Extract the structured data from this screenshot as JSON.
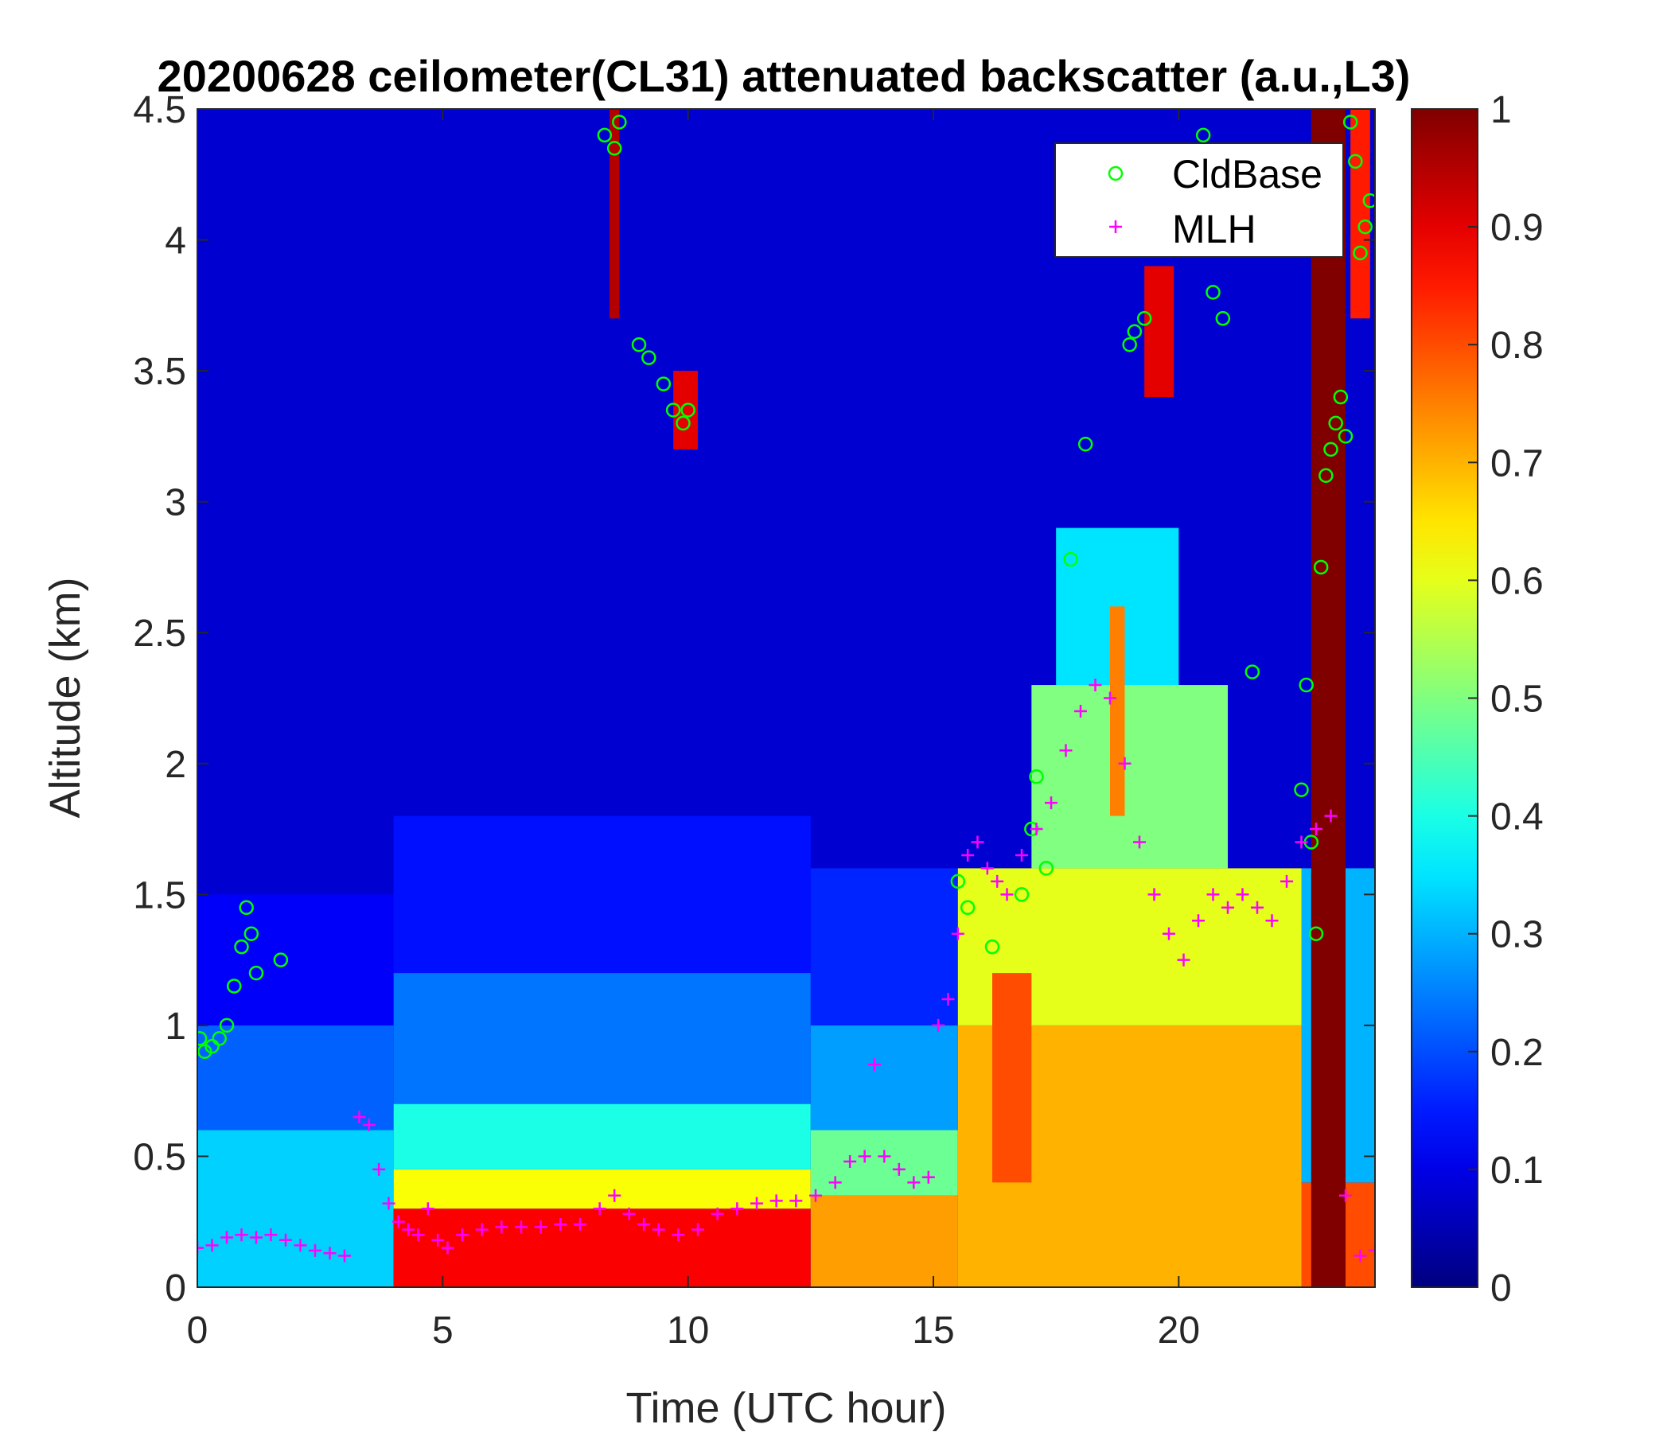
{
  "chart_data": {
    "type": "heatmap",
    "title": "20200628 ceilometer(CL31) attenuated backscatter (a.u.,L3)",
    "xlabel": "Time (UTC hour)",
    "ylabel": "Altitude (km)",
    "xlim": [
      0,
      24
    ],
    "ylim": [
      0,
      4.5
    ],
    "x_ticks": [
      0,
      5,
      10,
      15,
      20
    ],
    "x_tick_labels": [
      "0",
      "5",
      "10",
      "15",
      "20"
    ],
    "y_ticks": [
      0,
      0.5,
      1,
      1.5,
      2,
      2.5,
      3,
      3.5,
      4,
      4.5
    ],
    "y_tick_labels": [
      "0",
      "0.5",
      "1",
      "1.5",
      "2",
      "2.5",
      "3",
      "3.5",
      "4",
      "4.5"
    ],
    "colorbar": {
      "colormap": "jet",
      "clim": [
        0,
        1
      ],
      "ticks": [
        0,
        0.1,
        0.2,
        0.3,
        0.4,
        0.5,
        0.6,
        0.7,
        0.8,
        0.9,
        1
      ],
      "tick_labels": [
        "0",
        "0.1",
        "0.2",
        "0.3",
        "0.4",
        "0.5",
        "0.6",
        "0.7",
        "0.8",
        "0.9",
        "1"
      ]
    },
    "legend": {
      "placement": "top-right",
      "entries": [
        {
          "label": "CldBase",
          "marker": "circle",
          "color": "#00ff00"
        },
        {
          "label": "MLH",
          "marker": "plus",
          "color": "#ff00ff"
        }
      ]
    },
    "layers": [
      {
        "t0": 0,
        "t1": 4,
        "z0": 0,
        "z1": 0.6,
        "v": 0.33
      },
      {
        "t0": 0,
        "t1": 4,
        "z0": 0.6,
        "z1": 1.0,
        "v": 0.22
      },
      {
        "t0": 0,
        "t1": 4,
        "z0": 1.0,
        "z1": 1.5,
        "v": 0.12
      },
      {
        "t0": 4,
        "t1": 12.5,
        "z0": 0,
        "z1": 0.3,
        "v": 0.88
      },
      {
        "t0": 4,
        "t1": 12.5,
        "z0": 0.3,
        "z1": 0.45,
        "v": 0.62
      },
      {
        "t0": 4,
        "t1": 12.5,
        "z0": 0.45,
        "z1": 0.7,
        "v": 0.4
      },
      {
        "t0": 4,
        "t1": 12.5,
        "z0": 0.7,
        "z1": 1.2,
        "v": 0.24
      },
      {
        "t0": 4,
        "t1": 12.5,
        "z0": 1.2,
        "z1": 1.8,
        "v": 0.14
      },
      {
        "t0": 12.5,
        "t1": 15.5,
        "z0": 0,
        "z1": 0.35,
        "v": 0.72
      },
      {
        "t0": 12.5,
        "t1": 15.5,
        "z0": 0.35,
        "z1": 0.6,
        "v": 0.48
      },
      {
        "t0": 12.5,
        "t1": 15.5,
        "z0": 0.6,
        "z1": 1.0,
        "v": 0.28
      },
      {
        "t0": 12.5,
        "t1": 15.5,
        "z0": 1.0,
        "z1": 1.6,
        "v": 0.16
      },
      {
        "t0": 15.5,
        "t1": 22.5,
        "z0": 0,
        "z1": 1.0,
        "v": 0.7
      },
      {
        "t0": 15.5,
        "t1": 22.5,
        "z0": 1.0,
        "z1": 1.6,
        "v": 0.6
      },
      {
        "t0": 17,
        "t1": 21,
        "z0": 1.6,
        "z1": 2.3,
        "v": 0.5
      },
      {
        "t0": 17.5,
        "t1": 20,
        "z0": 2.3,
        "z1": 2.9,
        "v": 0.35
      },
      {
        "t0": 22.5,
        "t1": 24,
        "z0": 0,
        "z1": 0.4,
        "v": 0.8
      },
      {
        "t0": 22.5,
        "t1": 24,
        "z0": 0.4,
        "z1": 1.6,
        "v": 0.3
      },
      {
        "t0": 22.7,
        "t1": 23.4,
        "z0": 0,
        "z1": 4.5,
        "v": 1.0
      },
      {
        "t0": 18.6,
        "t1": 18.9,
        "z0": 1.8,
        "z1": 2.6,
        "v": 0.75
      },
      {
        "t0": 16.2,
        "t1": 17.0,
        "z0": 0.4,
        "z1": 1.2,
        "v": 0.8
      },
      {
        "t0": 8.4,
        "t1": 8.6,
        "z0": 3.7,
        "z1": 4.5,
        "v": 0.95
      },
      {
        "t0": 9.7,
        "t1": 10.2,
        "z0": 3.2,
        "z1": 3.5,
        "v": 0.9
      },
      {
        "t0": 19.3,
        "t1": 19.9,
        "z0": 3.4,
        "z1": 3.9,
        "v": 0.9
      },
      {
        "t0": 23.5,
        "t1": 23.9,
        "z0": 3.7,
        "z1": 4.5,
        "v": 0.85
      }
    ],
    "series": [
      {
        "name": "CldBase",
        "marker": "circle",
        "x": [
          0.05,
          0.15,
          0.3,
          0.45,
          0.6,
          0.75,
          0.9,
          1.0,
          1.1,
          1.2,
          1.7,
          8.3,
          8.5,
          8.6,
          9.0,
          9.2,
          9.5,
          9.7,
          9.9,
          10.0,
          15.5,
          15.7,
          16.2,
          16.8,
          17.0,
          17.1,
          17.3,
          17.8,
          18.1,
          19.0,
          19.1,
          19.3,
          20.5,
          20.7,
          20.9,
          21.5,
          22.5,
          22.6,
          22.7,
          22.8,
          22.9,
          23.0,
          23.1,
          23.2,
          23.3,
          23.4,
          23.5,
          23.6,
          23.7,
          23.8,
          23.9
        ],
        "y": [
          0.95,
          0.9,
          0.92,
          0.95,
          1.0,
          1.15,
          1.3,
          1.45,
          1.35,
          1.2,
          1.25,
          4.4,
          4.35,
          4.45,
          3.6,
          3.55,
          3.45,
          3.35,
          3.3,
          3.35,
          1.55,
          1.45,
          1.3,
          1.5,
          1.75,
          1.95,
          1.6,
          2.78,
          3.22,
          3.6,
          3.65,
          3.7,
          4.4,
          3.8,
          3.7,
          2.35,
          1.9,
          2.3,
          1.7,
          1.35,
          2.75,
          3.1,
          3.2,
          3.3,
          3.4,
          3.25,
          4.45,
          4.3,
          3.95,
          4.05,
          4.15
        ]
      },
      {
        "name": "MLH",
        "marker": "plus",
        "x": [
          0.0,
          0.3,
          0.6,
          0.9,
          1.2,
          1.5,
          1.8,
          2.1,
          2.4,
          2.7,
          3.0,
          3.3,
          3.5,
          3.7,
          3.9,
          4.1,
          4.3,
          4.5,
          4.7,
          4.9,
          5.1,
          5.4,
          5.8,
          6.2,
          6.6,
          7.0,
          7.4,
          7.8,
          8.2,
          8.5,
          8.8,
          9.1,
          9.4,
          9.8,
          10.2,
          10.6,
          11.0,
          11.4,
          11.8,
          12.2,
          12.6,
          13.0,
          13.3,
          13.6,
          13.8,
          14.0,
          14.3,
          14.6,
          14.9,
          15.1,
          15.3,
          15.5,
          15.7,
          15.9,
          16.1,
          16.3,
          16.5,
          16.8,
          17.1,
          17.4,
          17.7,
          18.0,
          18.3,
          18.6,
          18.9,
          19.2,
          19.5,
          19.8,
          20.1,
          20.4,
          20.7,
          21.0,
          21.3,
          21.6,
          21.9,
          22.2,
          22.5,
          22.8,
          23.1,
          23.4,
          23.7,
          24.0
        ],
        "y": [
          0.15,
          0.16,
          0.19,
          0.2,
          0.19,
          0.2,
          0.18,
          0.16,
          0.14,
          0.13,
          0.12,
          0.65,
          0.62,
          0.45,
          0.32,
          0.25,
          0.22,
          0.2,
          0.3,
          0.18,
          0.15,
          0.2,
          0.22,
          0.23,
          0.23,
          0.23,
          0.24,
          0.24,
          0.3,
          0.35,
          0.28,
          0.24,
          0.22,
          0.2,
          0.22,
          0.28,
          0.3,
          0.32,
          0.33,
          0.33,
          0.35,
          0.4,
          0.48,
          0.5,
          0.85,
          0.5,
          0.45,
          0.4,
          0.42,
          1.0,
          1.1,
          1.35,
          1.65,
          1.7,
          1.6,
          1.55,
          1.5,
          1.65,
          1.75,
          1.85,
          2.05,
          2.2,
          2.3,
          2.25,
          2.0,
          1.7,
          1.5,
          1.35,
          1.25,
          1.4,
          1.5,
          1.45,
          1.5,
          1.45,
          1.4,
          1.55,
          1.7,
          1.75,
          1.8,
          0.35,
          0.12,
          0.14
        ]
      }
    ]
  }
}
